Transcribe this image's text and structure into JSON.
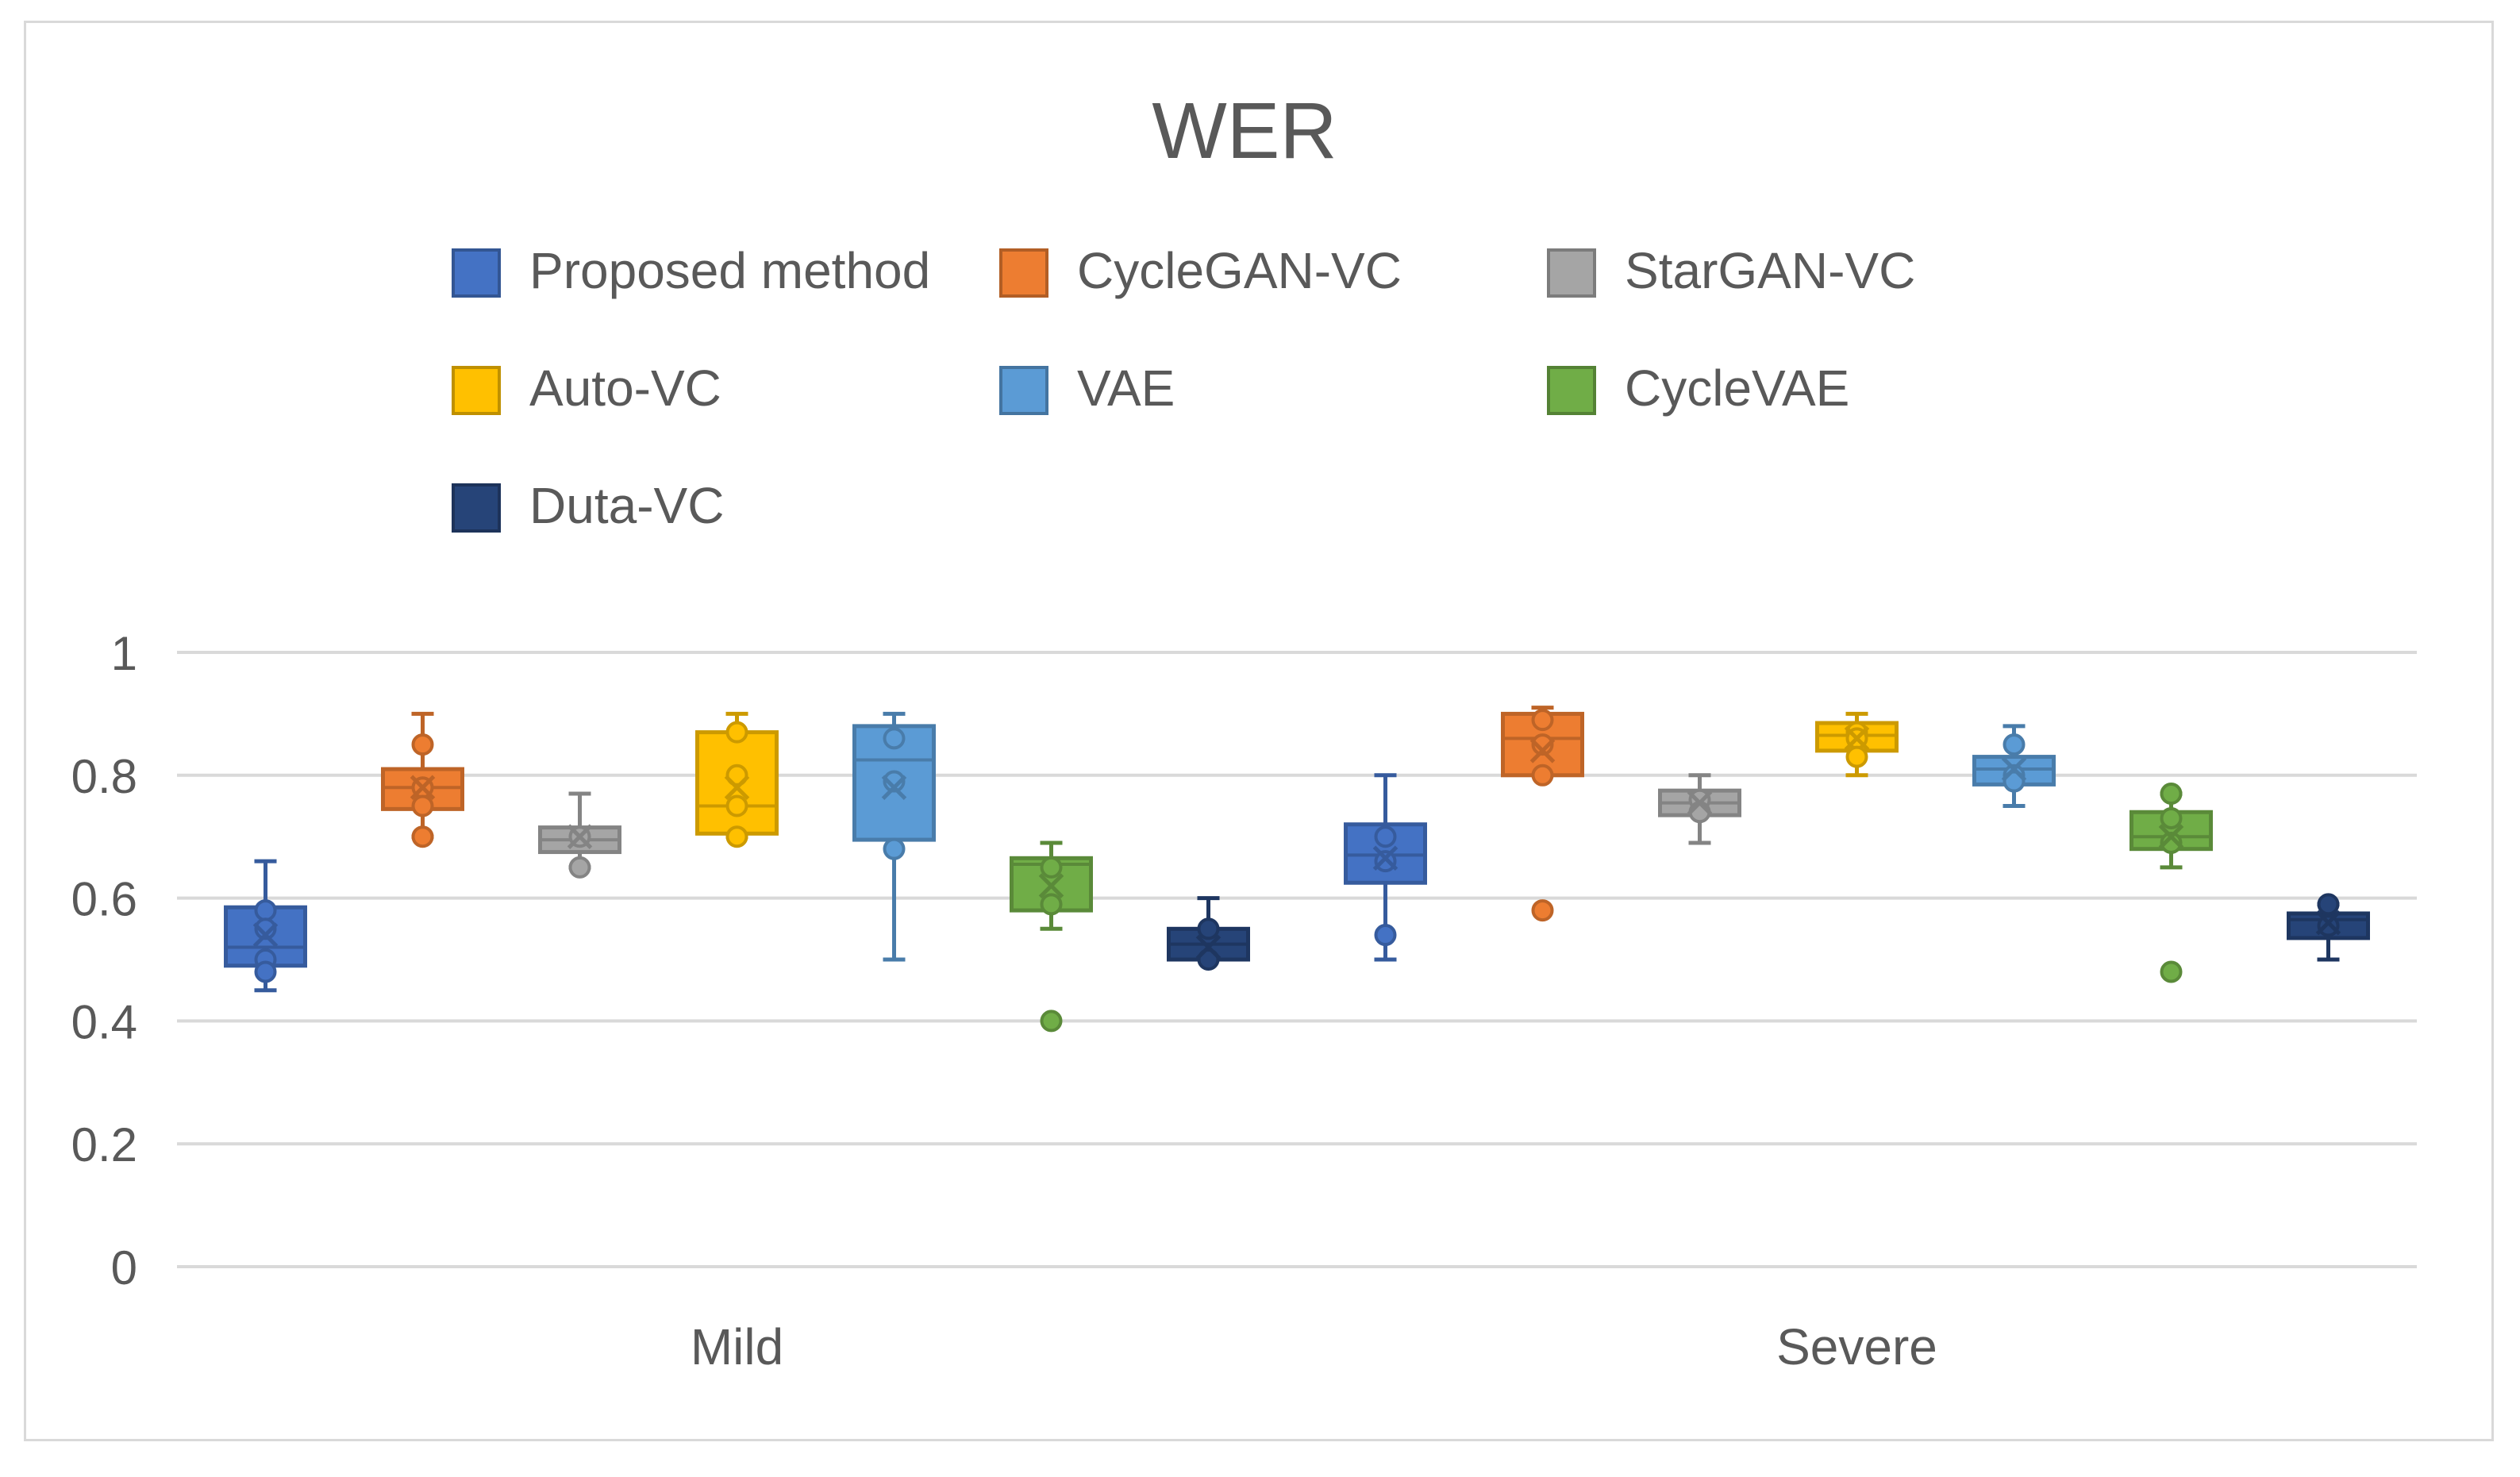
{
  "chart_data": {
    "type": "box",
    "title": "WER",
    "xlabel": "",
    "ylabel": "",
    "ylim": [
      0,
      1
    ],
    "yticks": [
      "0",
      "0.2",
      "0.4",
      "0.6",
      "0.8",
      "1"
    ],
    "grid": true,
    "legend_position": "top",
    "categories": [
      "Mild",
      "Severe"
    ],
    "colors": {
      "Proposed method": "#4472c4",
      "CycleGAN-VC": "#ed7d31",
      "StarGAN-VC": "#a5a5a5",
      "Auto-VC": "#ffc000",
      "VAE": "#5b9bd5",
      "CycleVAE": "#70ad47",
      "Duta-VC": "#264478"
    },
    "series": [
      {
        "name": "Proposed method",
        "boxes": [
          {
            "category": "Mild",
            "min": 0.45,
            "q1": 0.49,
            "median": 0.52,
            "q3": 0.585,
            "max": 0.66,
            "mean": 0.54,
            "points": [
              0.58,
              0.55,
              0.5,
              0.48
            ],
            "outliers": []
          },
          {
            "category": "Severe",
            "min": 0.5,
            "q1": 0.625,
            "median": 0.67,
            "q3": 0.72,
            "max": 0.8,
            "mean": 0.665,
            "points": [
              0.7,
              0.66,
              0.54
            ],
            "outliers": []
          }
        ]
      },
      {
        "name": "CycleGAN-VC",
        "boxes": [
          {
            "category": "Mild",
            "min": 0.7,
            "q1": 0.745,
            "median": 0.78,
            "q3": 0.81,
            "max": 0.9,
            "mean": 0.78,
            "points": [
              0.85,
              0.78,
              0.75,
              0.7
            ],
            "outliers": []
          },
          {
            "category": "Severe",
            "min": 0.8,
            "q1": 0.8,
            "median": 0.86,
            "q3": 0.9,
            "max": 0.91,
            "mean": 0.84,
            "points": [
              0.89,
              0.85,
              0.8
            ],
            "outliers": [
              0.58
            ]
          }
        ]
      },
      {
        "name": "StarGAN-VC",
        "boxes": [
          {
            "category": "Mild",
            "min": 0.65,
            "q1": 0.675,
            "median": 0.695,
            "q3": 0.715,
            "max": 0.77,
            "mean": 0.7,
            "points": [
              0.7,
              0.65
            ],
            "outliers": []
          },
          {
            "category": "Severe",
            "min": 0.69,
            "q1": 0.735,
            "median": 0.755,
            "q3": 0.775,
            "max": 0.8,
            "mean": 0.755,
            "points": [
              0.76,
              0.74
            ],
            "outliers": []
          }
        ]
      },
      {
        "name": "Auto-VC",
        "boxes": [
          {
            "category": "Mild",
            "min": 0.7,
            "q1": 0.705,
            "median": 0.75,
            "q3": 0.87,
            "max": 0.9,
            "mean": 0.78,
            "points": [
              0.87,
              0.8,
              0.75,
              0.7
            ],
            "outliers": []
          },
          {
            "category": "Severe",
            "min": 0.8,
            "q1": 0.84,
            "median": 0.865,
            "q3": 0.885,
            "max": 0.9,
            "mean": 0.86,
            "points": [
              0.87,
              0.86,
              0.83
            ],
            "outliers": []
          }
        ]
      },
      {
        "name": "VAE",
        "boxes": [
          {
            "category": "Mild",
            "min": 0.5,
            "q1": 0.695,
            "median": 0.825,
            "q3": 0.88,
            "max": 0.9,
            "mean": 0.78,
            "points": [
              0.86,
              0.79,
              0.68
            ],
            "outliers": []
          },
          {
            "category": "Severe",
            "min": 0.75,
            "q1": 0.785,
            "median": 0.81,
            "q3": 0.83,
            "max": 0.88,
            "mean": 0.81,
            "points": [
              0.85,
              0.8,
              0.79
            ],
            "outliers": []
          }
        ]
      },
      {
        "name": "CycleVAE",
        "boxes": [
          {
            "category": "Mild",
            "min": 0.55,
            "q1": 0.58,
            "median": 0.655,
            "q3": 0.665,
            "max": 0.69,
            "mean": 0.62,
            "points": [
              0.65,
              0.59
            ],
            "outliers": [
              0.4
            ]
          },
          {
            "category": "Severe",
            "min": 0.65,
            "q1": 0.68,
            "median": 0.7,
            "q3": 0.74,
            "max": 0.77,
            "mean": 0.7,
            "points": [
              0.77,
              0.73,
              0.69
            ],
            "outliers": [
              0.48
            ]
          }
        ]
      },
      {
        "name": "Duta-VC",
        "boxes": [
          {
            "category": "Mild",
            "min": 0.5,
            "q1": 0.5,
            "median": 0.525,
            "q3": 0.55,
            "max": 0.6,
            "mean": 0.52,
            "points": [
              0.55,
              0.5
            ],
            "outliers": []
          },
          {
            "category": "Severe",
            "min": 0.5,
            "q1": 0.535,
            "median": 0.565,
            "q3": 0.575,
            "max": 0.59,
            "mean": 0.56,
            "points": [
              0.59,
              0.555
            ],
            "outliers": []
          }
        ]
      }
    ]
  }
}
